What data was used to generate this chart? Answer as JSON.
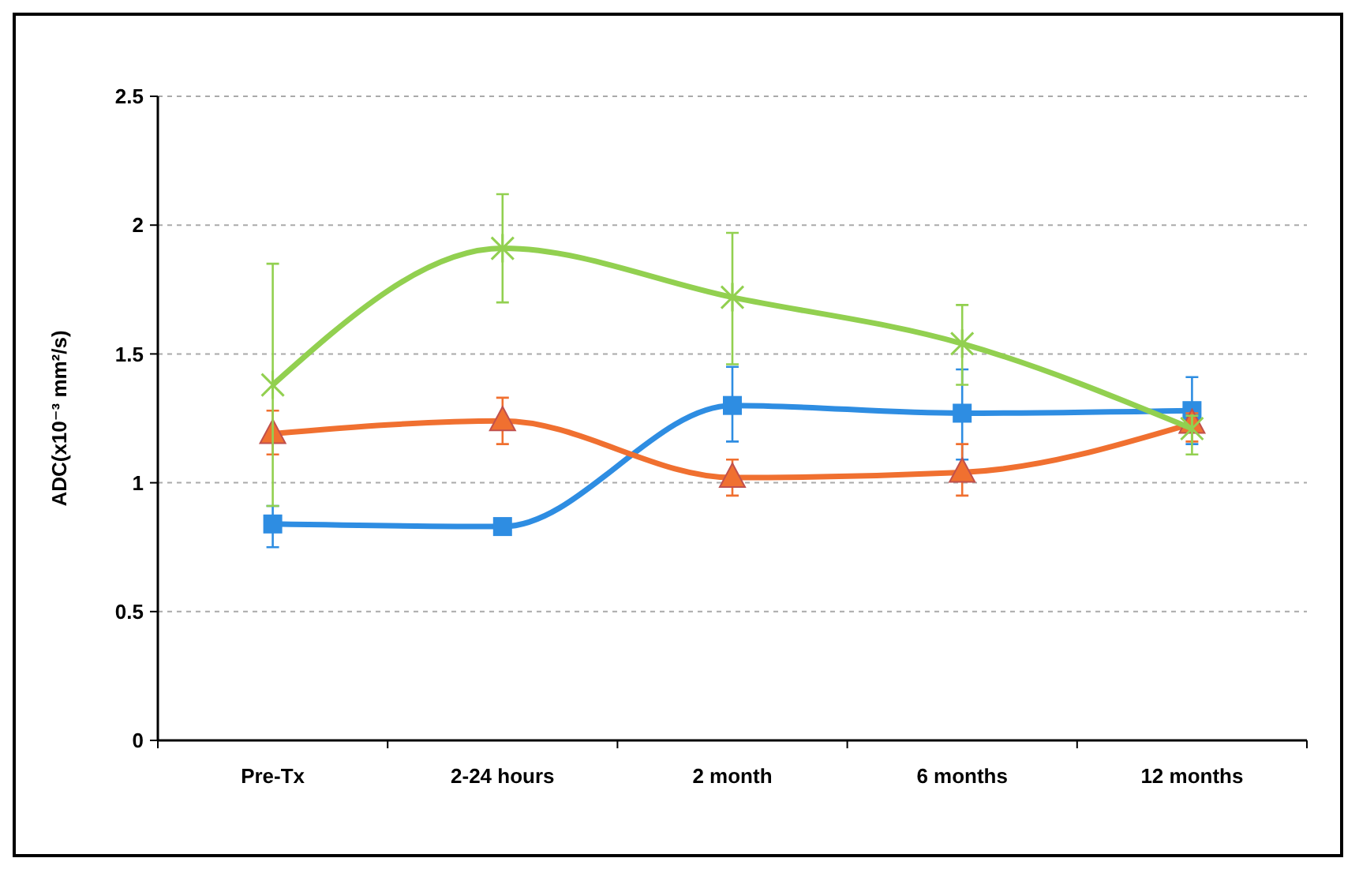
{
  "chart_data": {
    "type": "line",
    "ylabel": "ADC(x10⁻³ mm²/s)",
    "categories": [
      "Pre-Tx",
      "2-24 hours",
      "2 month",
      "6 months",
      "12 months"
    ],
    "ylim": [
      0,
      2.5
    ],
    "yticks": [
      0,
      0.5,
      1,
      1.5,
      2,
      2.5
    ],
    "grid": "y",
    "series": [
      {
        "color": "#2e8de2",
        "marker": "square",
        "values": [
          0.84,
          0.83,
          1.3,
          1.27,
          1.28
        ],
        "errors": [
          [
            0.75,
            0.91
          ],
          null,
          [
            1.16,
            1.45
          ],
          [
            1.09,
            1.44
          ],
          [
            1.15,
            1.41
          ]
        ]
      },
      {
        "color": "#f07030",
        "marker": "triangle",
        "values": [
          1.19,
          1.24,
          1.02,
          1.04,
          1.23
        ],
        "errors": [
          [
            1.11,
            1.28
          ],
          [
            1.15,
            1.33
          ],
          [
            0.95,
            1.09
          ],
          [
            0.95,
            1.15
          ],
          [
            1.16,
            1.27
          ]
        ]
      },
      {
        "color": "#92d050",
        "marker": "cross",
        "values": [
          1.38,
          1.91,
          1.72,
          1.54,
          1.21
        ],
        "errors": [
          [
            0.91,
            1.85
          ],
          [
            1.7,
            2.12
          ],
          [
            1.46,
            1.97
          ],
          [
            1.38,
            1.69
          ],
          [
            1.11,
            1.26
          ]
        ]
      }
    ]
  }
}
